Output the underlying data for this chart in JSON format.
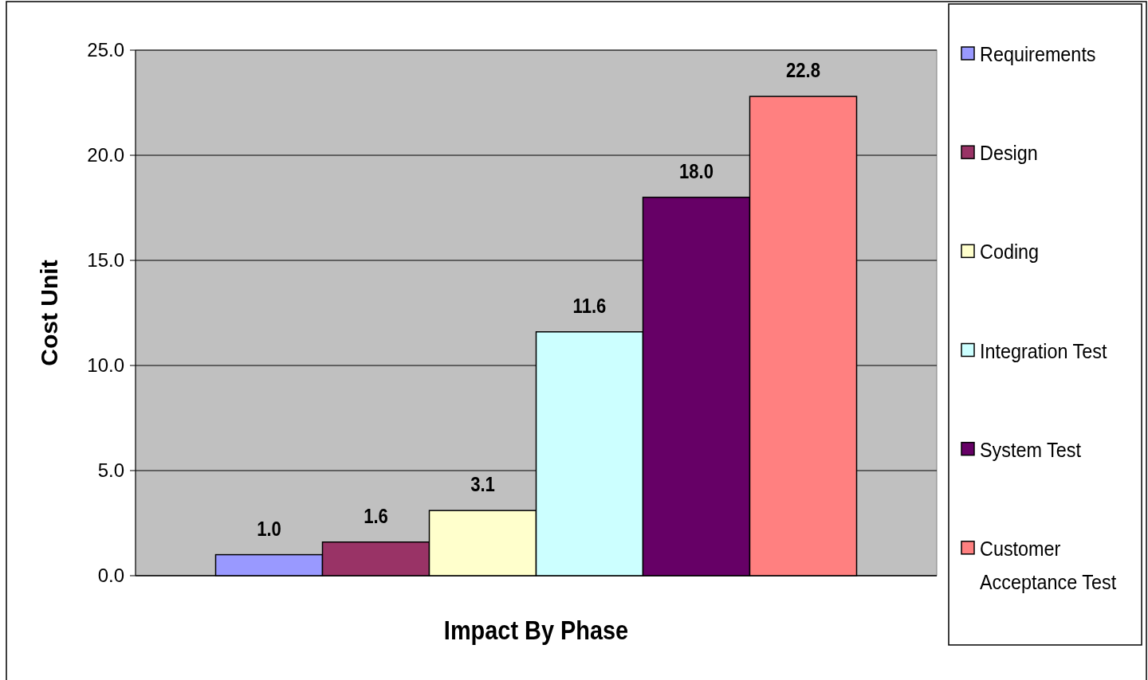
{
  "chart_data": {
    "type": "bar",
    "xlabel": "Impact By Phase",
    "ylabel": "Cost Unit",
    "categories": [
      null
    ],
    "series": [
      {
        "name": "Requirements",
        "color": "#9999ff",
        "values": [
          1.0
        ],
        "value_labels": [
          "1.0"
        ]
      },
      {
        "name": "Design",
        "color": "#993366",
        "values": [
          1.6
        ],
        "value_labels": [
          "1.6"
        ]
      },
      {
        "name": "Coding",
        "color": "#ffffcc",
        "values": [
          3.1
        ],
        "value_labels": [
          "3.1"
        ]
      },
      {
        "name": "Integration Test",
        "color": "#ccffff",
        "values": [
          11.6
        ],
        "value_labels": [
          "11.6"
        ]
      },
      {
        "name": "System Test",
        "color": "#660066",
        "values": [
          18.0
        ],
        "value_labels": [
          "18.0"
        ]
      },
      {
        "name": "Customer Acceptance Test",
        "color": "#ff8080",
        "values": [
          22.8
        ],
        "value_labels": [
          "22.8"
        ]
      }
    ],
    "ylim": [
      0,
      25
    ],
    "yticks": [
      {
        "value": 0,
        "label": "0.0"
      },
      {
        "value": 5,
        "label": "5.0"
      },
      {
        "value": 10,
        "label": "10.0"
      },
      {
        "value": 15,
        "label": "15.0"
      },
      {
        "value": 20,
        "label": "20.0"
      },
      {
        "value": 25,
        "label": "25.0"
      }
    ],
    "grid": "y",
    "legend": "right"
  }
}
